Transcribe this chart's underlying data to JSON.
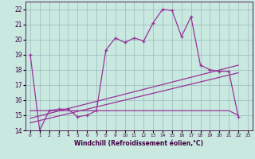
{
  "xlabel": "Windchill (Refroidissement éolien,°C)",
  "background_color": "#c8e8e0",
  "grid_color": "#99bbbb",
  "line_color": "#993399",
  "x_hours": [
    0,
    1,
    2,
    3,
    4,
    5,
    6,
    7,
    8,
    9,
    10,
    11,
    12,
    13,
    14,
    15,
    16,
    17,
    18,
    19,
    20,
    21,
    22,
    23
  ],
  "temp_line": [
    19.0,
    14.0,
    15.3,
    15.4,
    15.4,
    14.9,
    15.0,
    15.3,
    19.3,
    20.1,
    19.8,
    20.1,
    19.9,
    21.1,
    22.0,
    21.9,
    20.2,
    21.5,
    18.3,
    18.0,
    17.9,
    17.9,
    14.9,
    null
  ],
  "windchill_line": [
    15.3,
    15.3,
    15.3,
    15.3,
    15.3,
    15.3,
    15.3,
    15.3,
    15.3,
    15.3,
    15.3,
    15.3,
    15.3,
    15.3,
    15.3,
    15.3,
    15.3,
    15.3,
    15.3,
    15.3,
    15.3,
    15.3,
    15.0,
    null
  ],
  "reg_line1_x": [
    0,
    22
  ],
  "reg_line1_y": [
    14.8,
    18.3
  ],
  "reg_line2_x": [
    0,
    22
  ],
  "reg_line2_y": [
    14.5,
    17.8
  ],
  "ylim": [
    14,
    22.5
  ],
  "xlim": [
    -0.5,
    23.5
  ],
  "yticks": [
    14,
    15,
    16,
    17,
    18,
    19,
    20,
    21,
    22
  ],
  "xticks": [
    0,
    1,
    2,
    3,
    4,
    5,
    6,
    7,
    8,
    9,
    10,
    11,
    12,
    13,
    14,
    15,
    16,
    17,
    18,
    19,
    20,
    21,
    22,
    23
  ],
  "xtick_labels": [
    "0",
    "1",
    "2",
    "3",
    "4",
    "5",
    "6",
    "7",
    "8",
    "9",
    "10",
    "11",
    "12",
    "13",
    "14",
    "15",
    "16",
    "17",
    "18",
    "19",
    "20",
    "21",
    "22",
    "23"
  ]
}
